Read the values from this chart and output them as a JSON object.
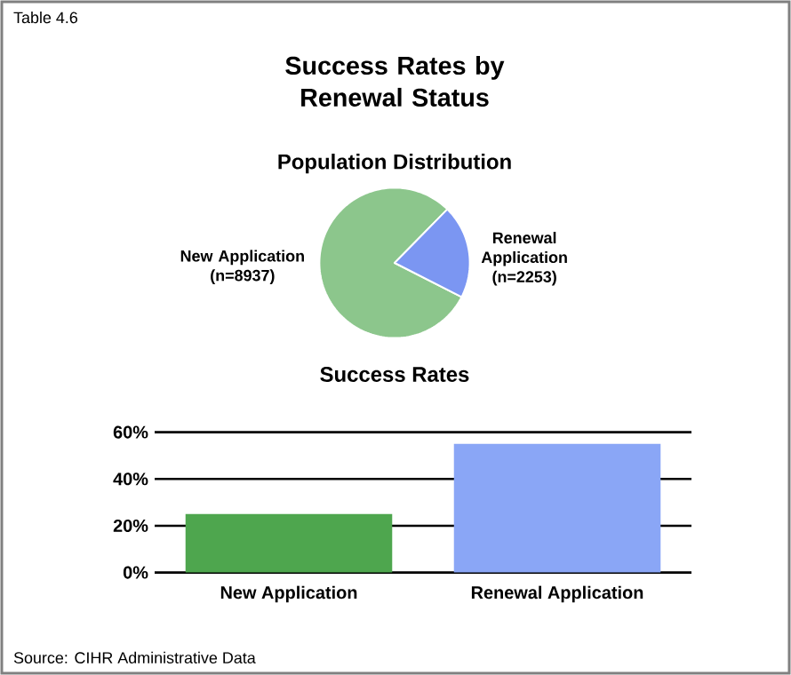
{
  "chart_data": [
    {
      "type": "pie",
      "title": "Success Rates by Renewal Status",
      "subtitle": "Population Distribution",
      "categories": [
        "New Application (n=8937)",
        "Renewal Application (n=2253)"
      ],
      "values": [
        8937,
        2253
      ],
      "colors": [
        "#8cc68c",
        "#7b96f2"
      ],
      "annotations": [
        "Table 4.6"
      ]
    },
    {
      "type": "bar",
      "title": "Success Rates",
      "categories": [
        "New Application",
        "Renewal Application"
      ],
      "values": [
        25,
        55
      ],
      "colors": [
        "#4ea64e",
        "#8aa6f6"
      ],
      "ylim": [
        0,
        60
      ],
      "yticks": [
        {
          "value": 0,
          "label": "0%"
        },
        {
          "value": 20,
          "label": "20%"
        },
        {
          "value": 40,
          "label": "40%"
        },
        {
          "value": 60,
          "label": "60%"
        }
      ],
      "grid": "y",
      "annotations": [
        "Source: CIHR Administrative Data"
      ]
    }
  ]
}
